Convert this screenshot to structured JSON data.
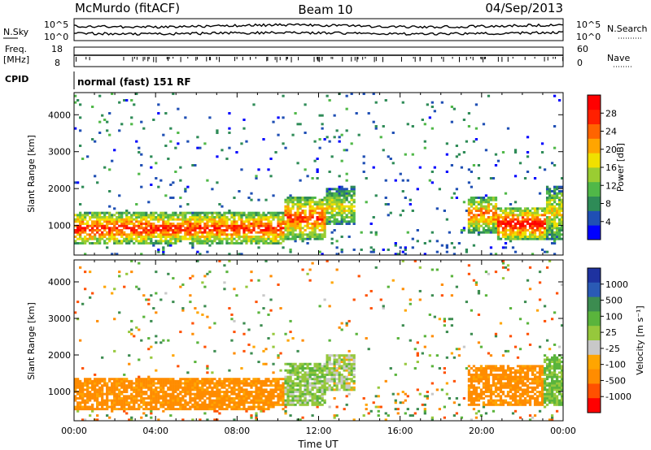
{
  "header": {
    "station": "McMurdo (fitACF)",
    "beam": "Beam 10",
    "date": "04/Sep/2013"
  },
  "noise_panel": {
    "left_label": "N.Sky",
    "right_label": "N.Search",
    "left_ticks": [
      "10^5",
      "10^0"
    ],
    "right_ticks": [
      "10^5",
      "10^0"
    ]
  },
  "freq_panel": {
    "left_label_line1": "Freq.",
    "left_label_line2": "[MHz]",
    "left_ticks": [
      "18",
      "8"
    ],
    "right_label": "Nave",
    "right_ticks": [
      "60",
      "0"
    ]
  },
  "cpid": {
    "label": "CPID",
    "value": "normal (fast) 151 RF"
  },
  "colors": {
    "power": [
      "#0000ff",
      "#1f4fb4",
      "#2e8b57",
      "#50b848",
      "#9acd32",
      "#f0e000",
      "#ffa500",
      "#ff6400",
      "#ff2000",
      "#ff0000"
    ],
    "velocity": [
      "#1e32a0",
      "#2a5ab5",
      "#3c8c50",
      "#5ab43c",
      "#96c83c",
      "#c8c8c8",
      "#ffa500",
      "#ff8c00",
      "#ff5000",
      "#ff0000"
    ]
  },
  "chart_data": [
    {
      "type": "heatmap",
      "name": "Power",
      "ylabel": "Slant Range [km]",
      "xlabel": "",
      "x_ticks": [
        "00:00",
        "04:00",
        "08:00",
        "12:00",
        "16:00",
        "20:00",
        "00:00"
      ],
      "x_hours": [
        0,
        4,
        8,
        12,
        16,
        20,
        24
      ],
      "y_ticks": [
        1000,
        2000,
        3000,
        4000
      ],
      "ylim": [
        200,
        4600
      ],
      "xlim": [
        0,
        24
      ],
      "colorbar": {
        "label": "Power [dB]",
        "ticks": [
          4,
          8,
          12,
          16,
          20,
          24,
          28
        ],
        "range": [
          0,
          32
        ]
      },
      "bands": [
        {
          "start": 0.0,
          "end": 10.3,
          "lo": 500,
          "hi": 1350,
          "core": 28
        },
        {
          "start": 10.3,
          "end": 12.3,
          "lo": 600,
          "hi": 1800,
          "core": 26
        },
        {
          "start": 12.3,
          "end": 13.8,
          "lo": 1000,
          "hi": 2000,
          "core": 18
        },
        {
          "start": 19.3,
          "end": 20.8,
          "lo": 800,
          "hi": 1800,
          "core": 24
        },
        {
          "start": 20.8,
          "end": 23.2,
          "lo": 600,
          "hi": 1500,
          "core": 30
        },
        {
          "start": 23.2,
          "end": 24.0,
          "lo": 600,
          "hi": 2100,
          "core": 18
        }
      ]
    },
    {
      "type": "heatmap",
      "name": "Velocity",
      "ylabel": "Slant Range [km]",
      "xlabel": "Time UT",
      "x_ticks": [
        "00:00",
        "04:00",
        "08:00",
        "12:00",
        "16:00",
        "20:00",
        "00:00"
      ],
      "x_hours": [
        0,
        4,
        8,
        12,
        16,
        20,
        24
      ],
      "y_ticks": [
        1000,
        2000,
        3000,
        4000
      ],
      "ylim": [
        200,
        4600
      ],
      "xlim": [
        0,
        24
      ],
      "colorbar": {
        "label": "Velocity [m s⁻¹]",
        "ticks": [
          1000,
          500,
          100,
          25,
          -25,
          -100,
          -500,
          -1000
        ]
      },
      "bands": [
        {
          "start": 0.0,
          "end": 10.3,
          "lo": 500,
          "hi": 1350,
          "core": -150
        },
        {
          "start": 10.3,
          "end": 12.3,
          "lo": 600,
          "hi": 1800,
          "core": 80
        },
        {
          "start": 12.3,
          "end": 13.8,
          "lo": 1000,
          "hi": 2000,
          "core": 40
        },
        {
          "start": 19.3,
          "end": 23.0,
          "lo": 600,
          "hi": 1700,
          "core": -150
        },
        {
          "start": 23.0,
          "end": 24.0,
          "lo": 600,
          "hi": 2000,
          "core": 120
        }
      ]
    }
  ]
}
